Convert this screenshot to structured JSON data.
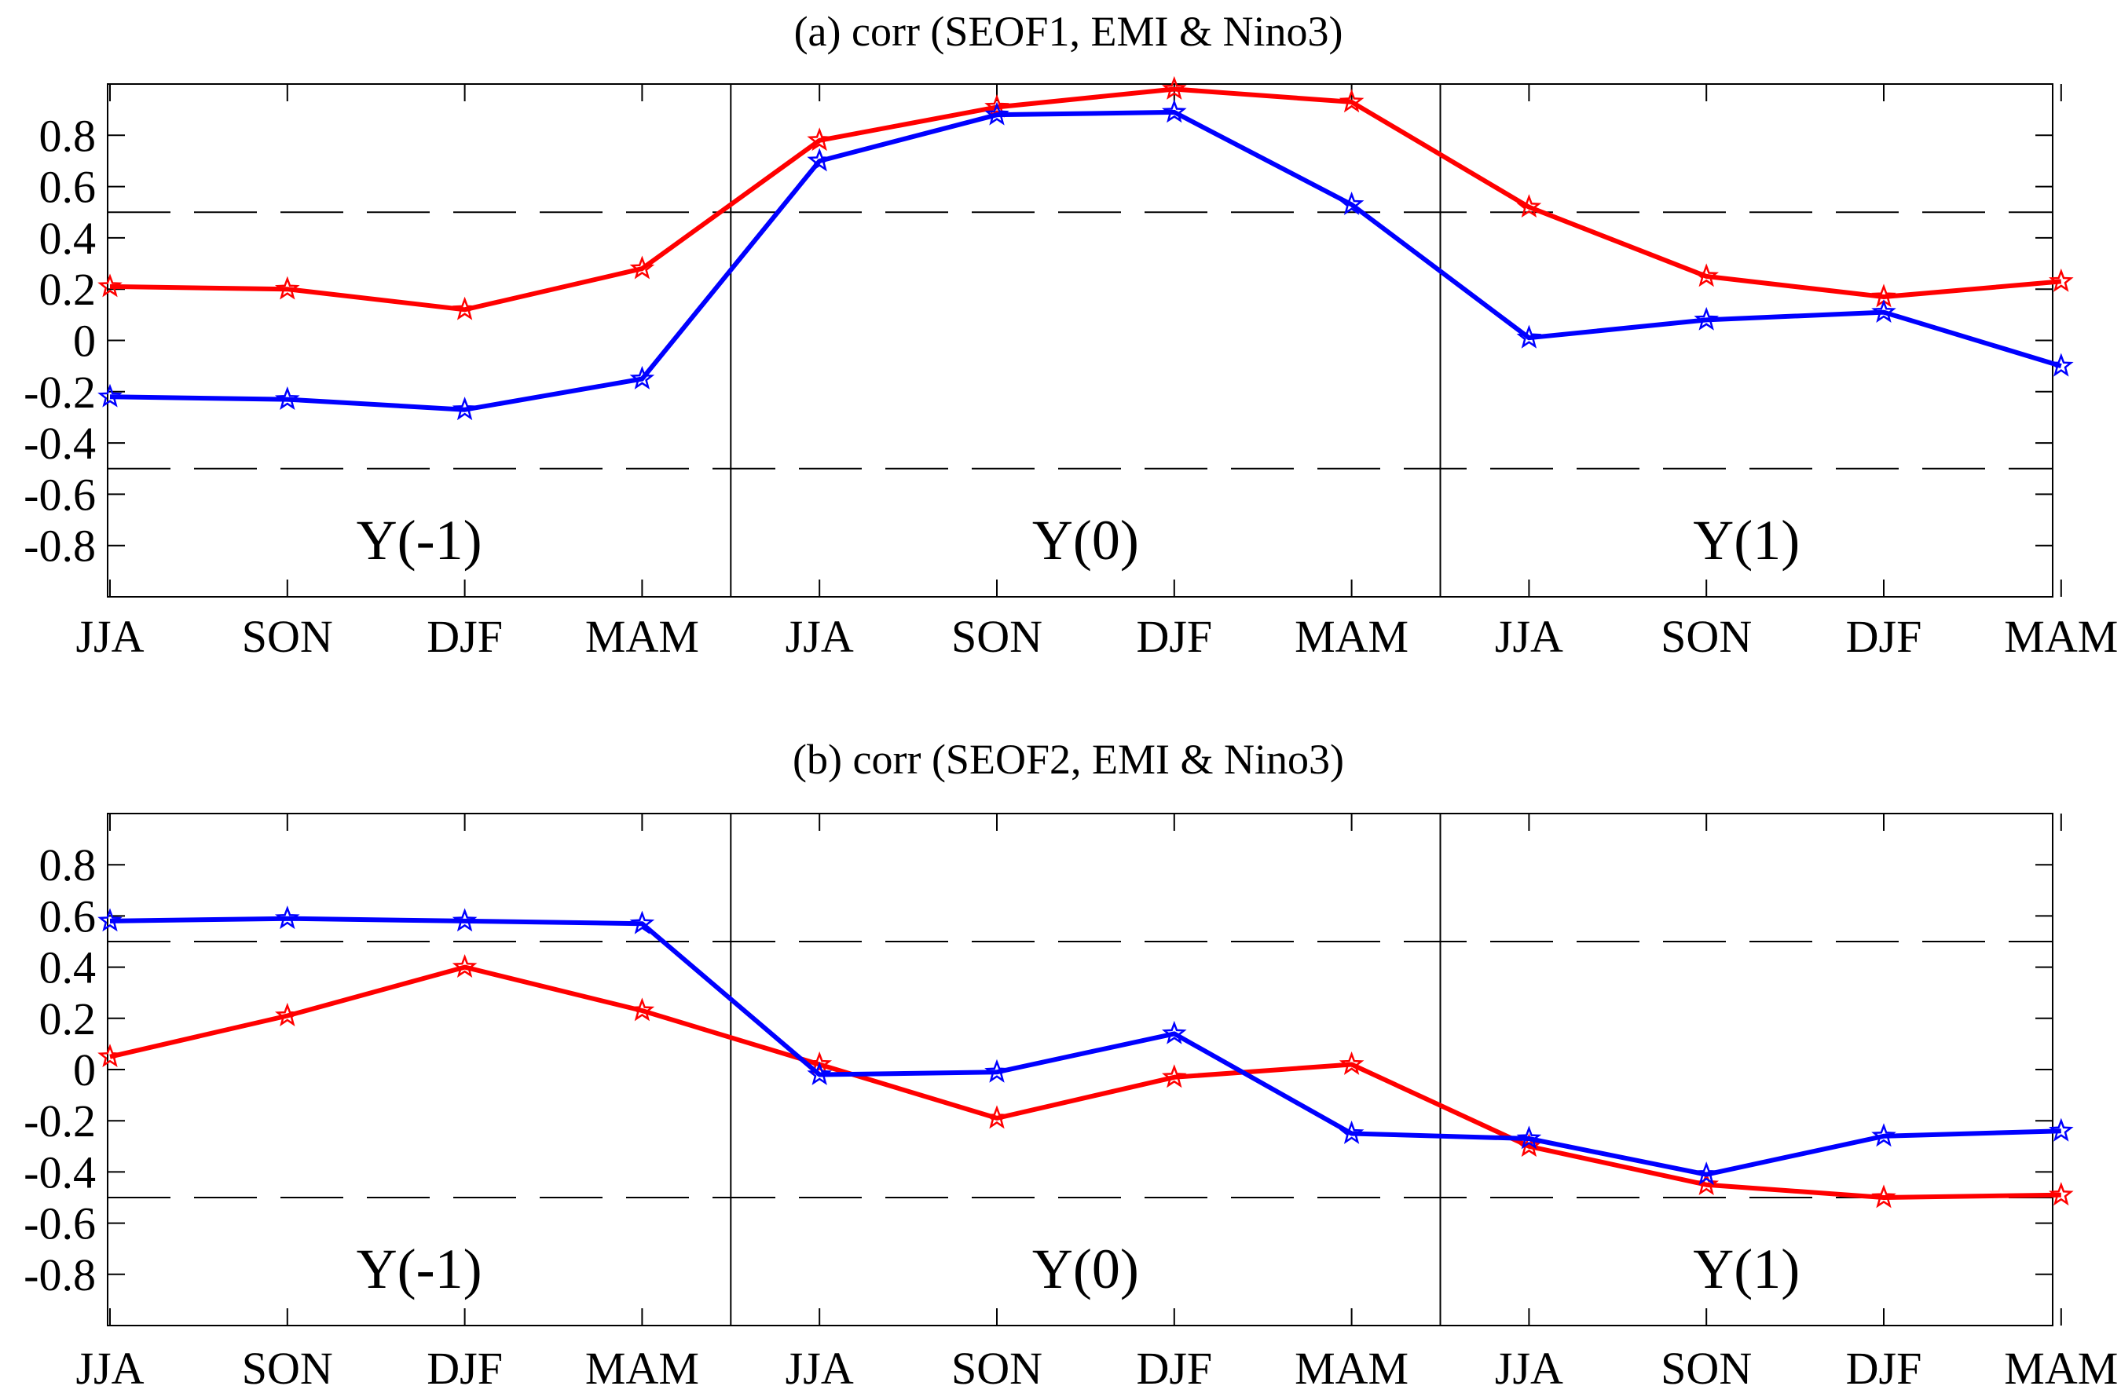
{
  "chart_data": [
    {
      "type": "line",
      "title": "(a) corr (SEOF1, EMI & Nino3)",
      "categories": [
        "JJA",
        "SON",
        "DJF",
        "MAM",
        "JJA",
        "SON",
        "DJF",
        "MAM",
        "JJA",
        "SON",
        "DJF",
        "MAM"
      ],
      "periods": [
        "Y(-1)",
        "Y(0)",
        "Y(1)"
      ],
      "yticks": [
        "0.8",
        "0.6",
        "0.4",
        "0.2",
        "0",
        "-0.2",
        "-0.4",
        "-0.6",
        "-0.8"
      ],
      "ylim": [
        -1.0,
        1.0
      ],
      "significance": [
        0.5,
        -0.5
      ],
      "series": [
        {
          "name": "Nino3",
          "color": "#ff0000",
          "values": [
            0.21,
            0.2,
            0.12,
            0.28,
            0.78,
            0.91,
            0.98,
            0.93,
            0.52,
            0.25,
            0.17,
            0.23
          ]
        },
        {
          "name": "EMI",
          "color": "#0000ff",
          "values": [
            -0.22,
            -0.23,
            -0.27,
            -0.15,
            0.7,
            0.88,
            0.89,
            0.53,
            0.01,
            0.08,
            0.11,
            -0.1
          ]
        }
      ]
    },
    {
      "type": "line",
      "title": "(b) corr (SEOF2, EMI & Nino3)",
      "categories": [
        "JJA",
        "SON",
        "DJF",
        "MAM",
        "JJA",
        "SON",
        "DJF",
        "MAM",
        "JJA",
        "SON",
        "DJF",
        "MAM"
      ],
      "periods": [
        "Y(-1)",
        "Y(0)",
        "Y(1)"
      ],
      "yticks": [
        "0.8",
        "0.6",
        "0.4",
        "0.2",
        "0",
        "-0.2",
        "-0.4",
        "-0.6",
        "-0.8"
      ],
      "ylim": [
        -1.0,
        1.0
      ],
      "significance": [
        0.5,
        -0.5
      ],
      "series": [
        {
          "name": "Nino3",
          "color": "#ff0000",
          "values": [
            0.05,
            0.21,
            0.4,
            0.23,
            0.02,
            -0.19,
            -0.03,
            0.02,
            -0.3,
            -0.45,
            -0.5,
            -0.49
          ]
        },
        {
          "name": "EMI",
          "color": "#0000ff",
          "values": [
            0.58,
            0.59,
            0.58,
            0.57,
            -0.02,
            -0.01,
            0.14,
            -0.25,
            -0.27,
            -0.41,
            -0.26,
            -0.24
          ]
        }
      ]
    }
  ]
}
